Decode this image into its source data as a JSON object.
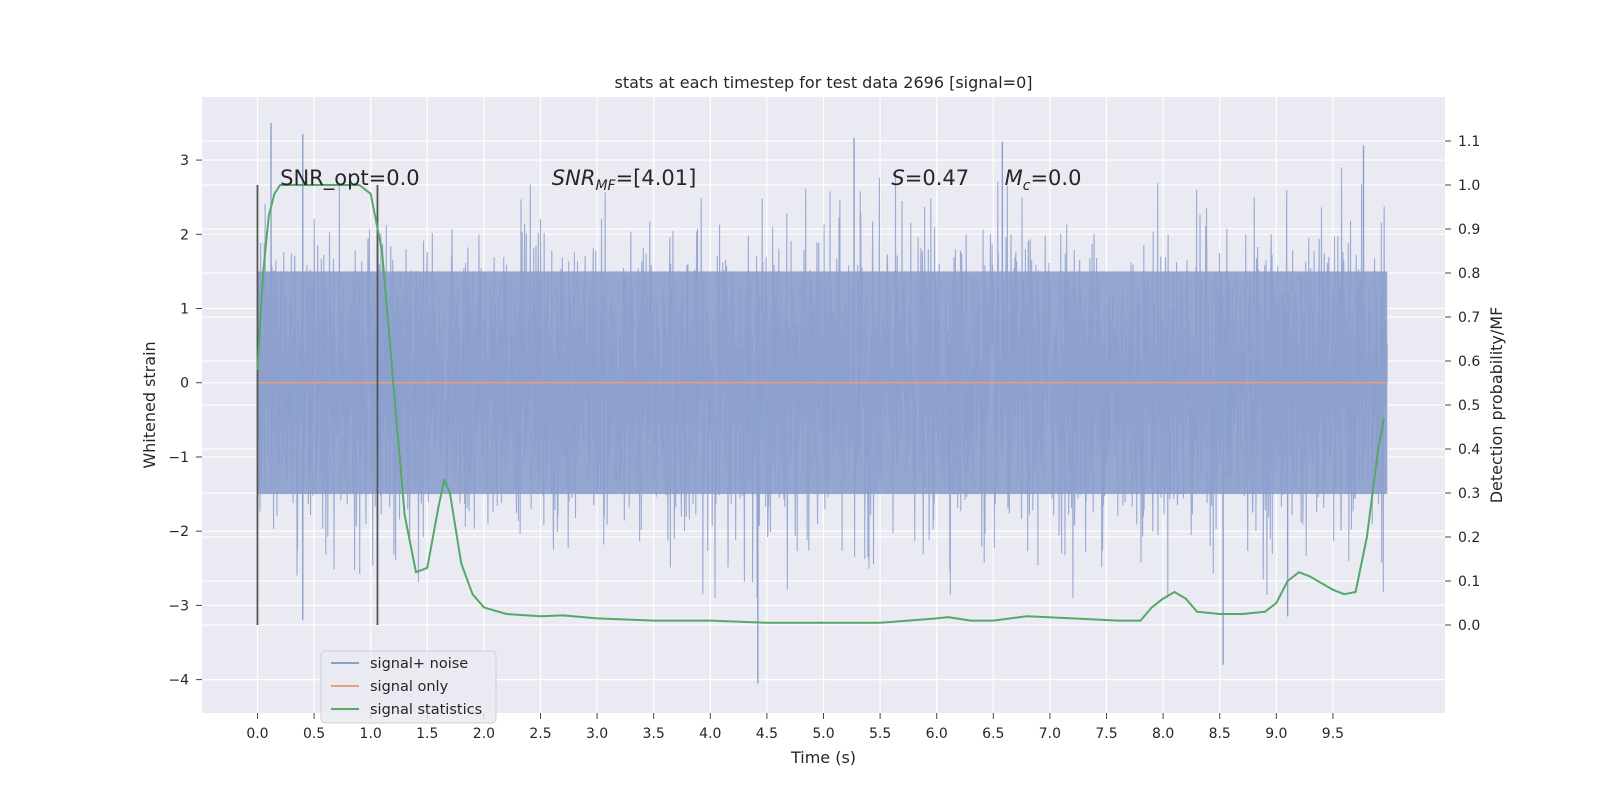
{
  "chart_data": {
    "type": "line",
    "title": "stats at each timestep for test data 2696 [signal=0]",
    "xlabel": "Time (s)",
    "ylabel_left": "Whitened strain",
    "ylabel_right": "Detection probability/MF",
    "xlim": [
      -0.49,
      10.49
    ],
    "ylim_left": [
      -4.45,
      3.85
    ],
    "ylim_right": [
      -0.2,
      1.2
    ],
    "x_ticks": [
      "0.0",
      "0.5",
      "1.0",
      "1.5",
      "2.0",
      "2.5",
      "3.0",
      "3.5",
      "4.0",
      "4.5",
      "5.0",
      "5.5",
      "6.0",
      "6.5",
      "7.0",
      "7.5",
      "8.0",
      "8.5",
      "9.0",
      "9.5"
    ],
    "y_ticks_left": [
      "−4",
      "−3",
      "−2",
      "−1",
      "0",
      "1",
      "2",
      "3"
    ],
    "y_ticks_right": [
      "0.0",
      "0.1",
      "0.2",
      "0.3",
      "0.4",
      "0.5",
      "0.6",
      "0.7",
      "0.8",
      "0.9",
      "1.0",
      "1.1"
    ],
    "grid": true,
    "legend_position": "lower-left",
    "colors": {
      "noise": "#8c9fcc",
      "signal": "#e5a07f",
      "stats": "#55a868",
      "marker": "#555555",
      "plot_bg": "#eaeaf2",
      "grid": "#ffffff"
    },
    "annotations": [
      {
        "text": "SNR_opt=0.0",
        "x": 0.2,
        "y_right": 1.0
      },
      {
        "text": "SNR",
        "sub": "MF",
        "tail": "=[4.01]",
        "italic_main": true,
        "x": 2.6,
        "y_right": 1.0
      },
      {
        "text": "S",
        "tail": "=0.47",
        "italic_main": true,
        "x": 5.6,
        "y_right": 1.0
      },
      {
        "text": "M",
        "sub": "c",
        "tail": "=0.0",
        "italic_main": true,
        "x": 6.6,
        "y_right": 1.0
      }
    ],
    "vertical_markers": [
      0.0,
      1.06
    ],
    "vertical_marker_range_right": [
      0.0,
      1.0
    ],
    "series": [
      {
        "name": "signal+ noise",
        "axis": "left",
        "kind": "noise",
        "x_range": [
          0.0,
          9.98
        ],
        "typical_range": [
          -1.5,
          1.5
        ],
        "extremes": [
          [
            0.12,
            3.5
          ],
          [
            0.4,
            3.35
          ],
          [
            0.4,
            -3.2
          ],
          [
            4.42,
            -4.05
          ],
          [
            5.27,
            3.3
          ],
          [
            6.58,
            3.25
          ],
          [
            8.53,
            -3.8
          ],
          [
            9.1,
            -3.15
          ],
          [
            9.77,
            3.2
          ]
        ]
      },
      {
        "name": "signal only",
        "axis": "left",
        "kind": "line",
        "x": [
          0.0,
          9.98
        ],
        "y": [
          0.0,
          0.0
        ]
      },
      {
        "name": "signal statistics",
        "axis": "right",
        "kind": "line",
        "x": [
          0.0,
          0.05,
          0.1,
          0.15,
          0.2,
          0.3,
          0.5,
          0.7,
          0.9,
          1.0,
          1.1,
          1.2,
          1.3,
          1.4,
          1.5,
          1.6,
          1.65,
          1.7,
          1.8,
          1.9,
          2.0,
          2.2,
          2.5,
          2.7,
          3.0,
          3.5,
          4.0,
          4.5,
          5.0,
          5.5,
          6.0,
          6.1,
          6.3,
          6.5,
          6.8,
          7.2,
          7.6,
          7.8,
          7.9,
          8.0,
          8.1,
          8.2,
          8.3,
          8.5,
          8.7,
          8.9,
          9.0,
          9.1,
          9.2,
          9.3,
          9.4,
          9.5,
          9.6,
          9.7,
          9.8,
          9.9,
          9.95
        ],
        "y": [
          0.58,
          0.8,
          0.93,
          0.98,
          1.0,
          1.0,
          1.0,
          1.0,
          1.0,
          0.98,
          0.85,
          0.55,
          0.25,
          0.12,
          0.13,
          0.27,
          0.33,
          0.3,
          0.14,
          0.07,
          0.04,
          0.025,
          0.02,
          0.022,
          0.015,
          0.01,
          0.01,
          0.005,
          0.005,
          0.005,
          0.015,
          0.018,
          0.01,
          0.01,
          0.02,
          0.015,
          0.01,
          0.01,
          0.04,
          0.06,
          0.075,
          0.06,
          0.03,
          0.025,
          0.025,
          0.03,
          0.05,
          0.1,
          0.12,
          0.11,
          0.095,
          0.08,
          0.07,
          0.075,
          0.2,
          0.4,
          0.47
        ]
      }
    ]
  }
}
